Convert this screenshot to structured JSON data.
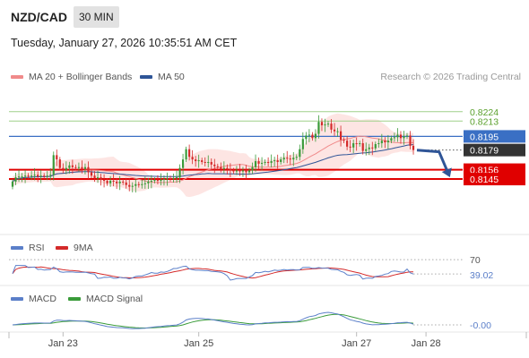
{
  "header": {
    "pair": "NZD/CAD",
    "timeframe": "30 MIN",
    "datetime": "Tuesday, January 27, 2026 10:35:51 AM CET"
  },
  "legend": {
    "ma20": "MA 20 + Bollinger Bands",
    "ma50": "MA 50",
    "credit": "Research © 2026 Trading Central"
  },
  "colors": {
    "ma20": "#f08a8a",
    "ma50": "#2f5597",
    "band_fill": "#fde0de",
    "green": "#9fd08a",
    "blue_line": "#3a6fc4",
    "red_line": "#e00000",
    "up": "#3a9b3a",
    "down": "#d42a2a",
    "rsi": "#5b7fc9",
    "rsi_ma": "#d42a2a",
    "macd": "#5b7fc9",
    "macd_signal": "#3a9b3a"
  },
  "chart_data": [
    {
      "type": "candlestick",
      "ylim": [
        0.808,
        0.825
      ],
      "x_ticks": [
        {
          "label": "Jan 23",
          "index": 16
        },
        {
          "label": "Jan 25",
          "index": 59
        },
        {
          "label": "Jan 27",
          "index": 109
        },
        {
          "label": "Jan 28",
          "index": 131
        }
      ],
      "levels": [
        {
          "value": 0.8224,
          "label": "0.8224",
          "kind": "green"
        },
        {
          "value": 0.8213,
          "label": "0.8213",
          "kind": "green"
        },
        {
          "value": 0.8195,
          "label": "0.8195",
          "kind": "blue"
        },
        {
          "value": 0.8156,
          "label": "0.8156",
          "kind": "red"
        },
        {
          "value": 0.8145,
          "label": "0.8145",
          "kind": "red"
        }
      ],
      "current_price": {
        "value": 0.8179,
        "label": "0.8179"
      },
      "forecast_arrow": [
        [
          0,
          0.8179
        ],
        [
          7,
          0.8177
        ],
        [
          10,
          0.8151
        ]
      ],
      "close": [
        0.8142,
        0.8147,
        0.8148,
        0.8148,
        0.8149,
        0.8148,
        0.8149,
        0.815,
        0.8148,
        0.8149,
        0.8148,
        0.8149,
        0.815,
        0.8173,
        0.8168,
        0.8158,
        0.8156,
        0.8158,
        0.8161,
        0.8159,
        0.8158,
        0.8159,
        0.8157,
        0.8159,
        0.8153,
        0.8149,
        0.8146,
        0.8147,
        0.8144,
        0.8143,
        0.814,
        0.8143,
        0.8142,
        0.814,
        0.8142,
        0.8141,
        0.8138,
        0.8136,
        0.8137,
        0.8139,
        0.8138,
        0.8139,
        0.814,
        0.8142,
        0.8143,
        0.8144,
        0.8143,
        0.8144,
        0.8145,
        0.8146,
        0.8145,
        0.8146,
        0.8147,
        0.8158,
        0.8168,
        0.818,
        0.8171,
        0.8168,
        0.8166,
        0.8167,
        0.8165,
        0.8164,
        0.8165,
        0.8162,
        0.816,
        0.8159,
        0.8157,
        0.8158,
        0.8157,
        0.8155,
        0.8154,
        0.8155,
        0.8154,
        0.8155,
        0.8153,
        0.8155,
        0.8159,
        0.8166,
        0.8163,
        0.8164,
        0.8165,
        0.8164,
        0.8166,
        0.8167,
        0.8165,
        0.8168,
        0.817,
        0.8169,
        0.8168,
        0.817,
        0.8171,
        0.818,
        0.8192,
        0.8196,
        0.8197,
        0.8193,
        0.8198,
        0.8212,
        0.8208,
        0.8209,
        0.821,
        0.8203,
        0.8201,
        0.8201,
        0.8191,
        0.819,
        0.8183,
        0.8182,
        0.8187,
        0.8186,
        0.8187,
        0.8178,
        0.818,
        0.8182,
        0.8181,
        0.8186,
        0.8187,
        0.819,
        0.8188,
        0.819,
        0.8193,
        0.8194,
        0.8197,
        0.8193,
        0.8195,
        0.8196,
        0.8184,
        0.8179
      ]
    },
    {
      "type": "line",
      "name": "RSI",
      "series_labels": [
        "RSI",
        "9MA"
      ],
      "level": {
        "value": 70,
        "label": "70"
      },
      "current": {
        "value": 39.02,
        "label": "39.02"
      },
      "ylim": [
        20,
        80
      ]
    },
    {
      "type": "line",
      "name": "MACD",
      "series_labels": [
        "MACD",
        "MACD Signal"
      ],
      "current": {
        "value": 0,
        "label": "-0.00"
      }
    }
  ]
}
